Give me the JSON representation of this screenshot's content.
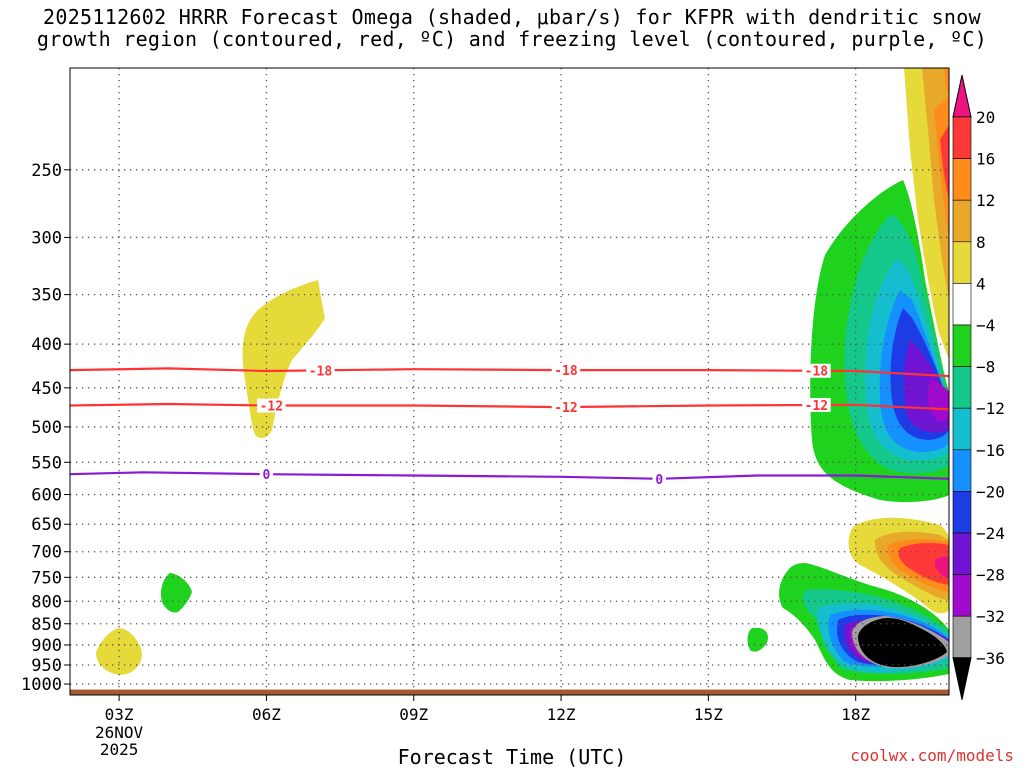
{
  "title": {
    "line1": "2025112602 HRRR Forecast Omega (shaded, μbar/s) for KFPR with dendritic snow",
    "line2": "growth region (contoured, red, ºC) and freezing level (contoured, purple, ºC)"
  },
  "footer": {
    "xlabel": "Forecast Time (UTC)",
    "credit": "coolwx.com/models"
  },
  "chart_data": {
    "type": "heatmap",
    "xlabel": "Forecast Time (UTC)",
    "x_range_hours_utc": [
      2,
      19.9
    ],
    "x_ticks": [
      {
        "hour": 3,
        "label": "03Z",
        "sublabels": [
          "26NOV",
          "2025"
        ]
      },
      {
        "hour": 6,
        "label": "06Z"
      },
      {
        "hour": 9,
        "label": "09Z"
      },
      {
        "hour": 12,
        "label": "12Z"
      },
      {
        "hour": 15,
        "label": "15Z"
      },
      {
        "hour": 18,
        "label": "18Z"
      }
    ],
    "y_axis": {
      "quantity": "pressure",
      "scale": "log",
      "inverted": true,
      "range": [
        1030,
        190
      ]
    },
    "y_ticks": [
      250,
      300,
      350,
      400,
      450,
      500,
      550,
      600,
      650,
      700,
      750,
      800,
      850,
      900,
      950,
      1000
    ],
    "grid": true,
    "colorbar": {
      "position": "right",
      "labels": [
        "20",
        "16",
        "12",
        "8",
        "4",
        "−4",
        "−8",
        "−12",
        "−16",
        "−20",
        "−24",
        "−28",
        "−32",
        "−36"
      ],
      "colors": [
        "#ec1480",
        "#ff3838",
        "#ff8c1a",
        "#e8a82a",
        "#e6da3a",
        "#ffffff",
        "#1ed21e",
        "#14c88c",
        "#14bece",
        "#1490ff",
        "#1e3ce6",
        "#6e14d2",
        "#a00acc",
        "#a0a0a0",
        "#000000"
      ]
    },
    "contours": [
      {
        "color": "#ff3333",
        "label": "-18",
        "points": [
          [
            2,
            429
          ],
          [
            4,
            427
          ],
          [
            6,
            430
          ],
          [
            9,
            428
          ],
          [
            12,
            429
          ],
          [
            15,
            429
          ],
          [
            18,
            430
          ],
          [
            19.9,
            436
          ]
        ],
        "label_hours": [
          7.1,
          12.1,
          17.2
        ]
      },
      {
        "color": "#ff3333",
        "label": "-12",
        "points": [
          [
            2,
            472
          ],
          [
            4,
            470
          ],
          [
            6,
            472
          ],
          [
            9,
            472
          ],
          [
            12,
            474
          ],
          [
            15,
            472
          ],
          [
            18,
            471
          ],
          [
            19.9,
            477
          ]
        ],
        "label_hours": [
          6.1,
          12.1,
          17.2
        ]
      },
      {
        "color": "#8a1ad6",
        "label": "0",
        "points": [
          [
            2,
            568
          ],
          [
            3.5,
            565
          ],
          [
            6,
            568
          ],
          [
            9,
            570
          ],
          [
            12,
            572
          ],
          [
            14,
            575
          ],
          [
            16,
            570
          ],
          [
            18,
            570
          ],
          [
            19.9,
            575
          ]
        ],
        "label_hours": [
          6.0,
          14.0
        ]
      }
    ],
    "ground_band": {
      "color": "#a55a30",
      "pressure": [
        1015,
        1030
      ]
    }
  }
}
